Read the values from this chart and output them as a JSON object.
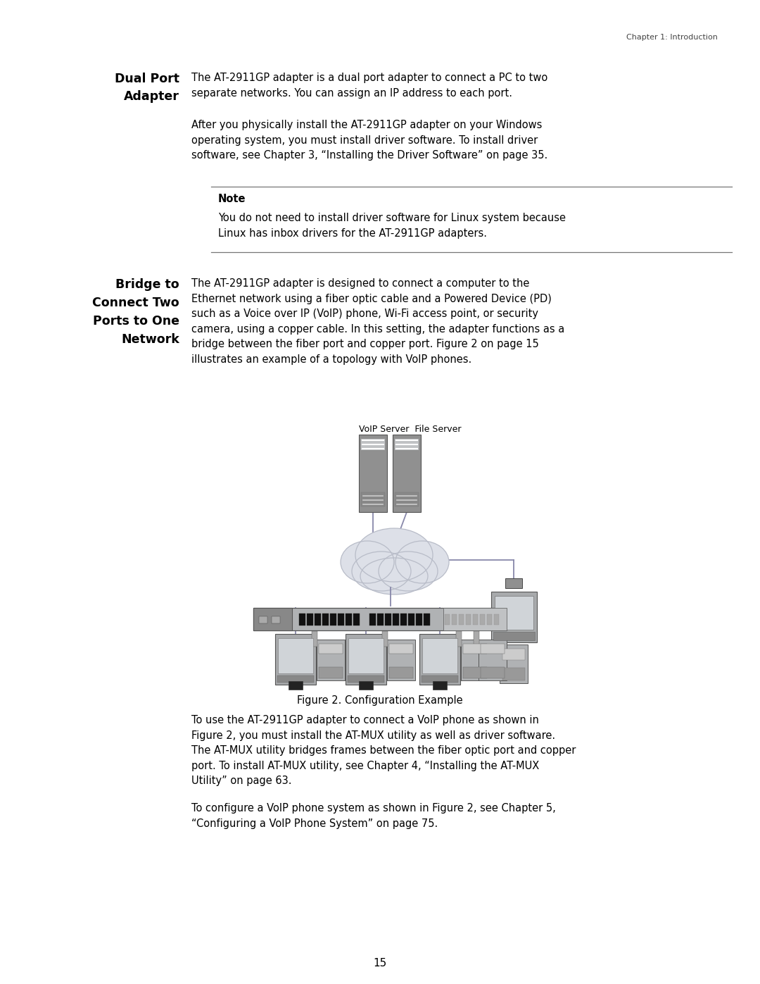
{
  "page_title": "Chapter 1: Introduction",
  "page_number": "15",
  "background_color": "#ffffff",
  "text_color": "#000000",
  "section1_heading_line1": "Dual Port",
  "section1_heading_line2": "Adapter",
  "section1_para1": "The AT-2911GP adapter is a dual port adapter to connect a PC to two\nseparate networks. You can assign an IP address to each port.",
  "section1_para2": "After you physically install the AT-2911GP adapter on your Windows\noperating system, you must install driver software. To install driver\nsoftware, see Chapter 3, “Installing the Driver Software” on page 35.",
  "note_title": "Note",
  "note_text": "You do not need to install driver software for Linux system because\nLinux has inbox drivers for the AT-2911GP adapters.",
  "section2_heading_line1": "Bridge to",
  "section2_heading_line2": "Connect Two",
  "section2_heading_line3": "Ports to One",
  "section2_heading_line4": "Network",
  "section2_para1": "The AT-2911GP adapter is designed to connect a computer to the\nEthernet network using a fiber optic cable and a Powered Device (PD)\nsuch as a Voice over IP (VoIP) phone, Wi-Fi access point, or security\ncamera, using a copper cable. In this setting, the adapter functions as a\nbridge between the fiber port and copper port. Figure 2 on page 15\nillustrates an example of a topology with VoIP phones.",
  "figure_caption": "Figure 2. Configuration Example",
  "bottom_para1": "To use the AT-2911GP adapter to connect a VoIP phone as shown in\nFigure 2, you must install the AT-MUX utility as well as driver software.\nThe AT-MUX utility bridges frames between the fiber optic port and copper\nport. To install AT-MUX utility, see Chapter 4, “Installing the AT-MUX\nUtility” on page 63.",
  "bottom_para2": "To configure a VoIP phone system as shown in Figure 2, see Chapter 5,\n“Configuring a VoIP Phone System” on page 75.",
  "voip_label": "VoIP Server  File Server",
  "line_color": "#8888aa",
  "server_color": "#909090",
  "cloud_color": "#dde0e8",
  "cloud_edge": "#b8bcc8",
  "switch_color": "#a8aaac",
  "switch_port_color": "#111111",
  "monitor_color": "#a8aaac",
  "monitor_screen": "#d0d4d8",
  "phone_color": "#b0b2b4"
}
